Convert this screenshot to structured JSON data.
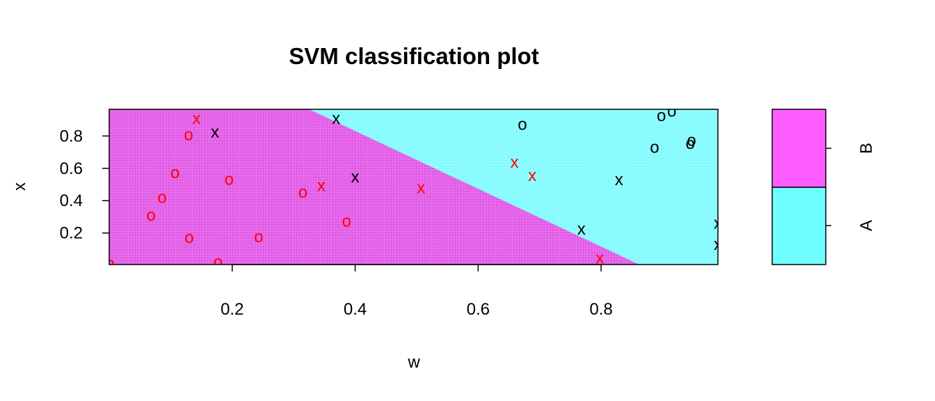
{
  "colors": {
    "region_B": "#e05ae6",
    "region_A": "#7ffbff",
    "legend_B": "#ff5cff",
    "legend_A": "#6ffffe",
    "point_red": "#ff0000",
    "point_black": "#000000"
  },
  "chart_data": {
    "type": "scatter",
    "title": "SVM classification plot",
    "xlabel": "w",
    "ylabel": "x",
    "xlim": [
      0.0,
      0.99
    ],
    "ylim": [
      0.005,
      0.965
    ],
    "x_ticks": [
      0.2,
      0.4,
      0.6,
      0.8
    ],
    "y_ticks": [
      0.2,
      0.4,
      0.6,
      0.8
    ],
    "x_tick_labels": [
      "0.2",
      "0.4",
      "0.6",
      "0.8"
    ],
    "y_tick_labels": [
      "0.2",
      "0.4",
      "0.6",
      "0.8"
    ],
    "decision_boundary": [
      [
        0.325,
        0.965
      ],
      [
        0.862,
        0.005
      ]
    ],
    "regions": [
      {
        "class": "B",
        "side": "left-lower",
        "color": "#e05ae6"
      },
      {
        "class": "A",
        "side": "right-upper",
        "color": "#7ffbff"
      }
    ],
    "legend": {
      "placement": "right",
      "entries": [
        {
          "label": "B",
          "color": "#ff5cff"
        },
        {
          "label": "A",
          "color": "#6ffffe"
        }
      ]
    },
    "points": [
      {
        "w": 0.142,
        "x": 0.908,
        "marker": "x",
        "color": "red"
      },
      {
        "w": 0.129,
        "x": 0.808,
        "marker": "o",
        "color": "red"
      },
      {
        "w": 0.107,
        "x": 0.573,
        "marker": "o",
        "color": "red"
      },
      {
        "w": 0.195,
        "x": 0.533,
        "marker": "o",
        "color": "red"
      },
      {
        "w": 0.086,
        "x": 0.42,
        "marker": "o",
        "color": "red"
      },
      {
        "w": 0.068,
        "x": 0.311,
        "marker": "o",
        "color": "red"
      },
      {
        "w": 0.13,
        "x": 0.173,
        "marker": "o",
        "color": "red"
      },
      {
        "w": 0.243,
        "x": 0.178,
        "marker": "o",
        "color": "red"
      },
      {
        "w": 0.177,
        "x": 0.022,
        "marker": "o",
        "color": "red"
      },
      {
        "w": 0.001,
        "x": 0.014,
        "marker": "o",
        "color": "red"
      },
      {
        "w": 0.315,
        "x": 0.452,
        "marker": "o",
        "color": "red"
      },
      {
        "w": 0.345,
        "x": 0.493,
        "marker": "x",
        "color": "red"
      },
      {
        "w": 0.386,
        "x": 0.273,
        "marker": "o",
        "color": "red"
      },
      {
        "w": 0.507,
        "x": 0.48,
        "marker": "x",
        "color": "red"
      },
      {
        "w": 0.659,
        "x": 0.638,
        "marker": "x",
        "color": "red"
      },
      {
        "w": 0.688,
        "x": 0.557,
        "marker": "x",
        "color": "red"
      },
      {
        "w": 0.798,
        "x": 0.046,
        "marker": "x",
        "color": "red"
      },
      {
        "w": 0.172,
        "x": 0.825,
        "marker": "x",
        "color": "black"
      },
      {
        "w": 0.369,
        "x": 0.91,
        "marker": "x",
        "color": "black"
      },
      {
        "w": 0.4,
        "x": 0.548,
        "marker": "x",
        "color": "black"
      },
      {
        "w": 0.672,
        "x": 0.873,
        "marker": "o",
        "color": "black"
      },
      {
        "w": 0.898,
        "x": 0.927,
        "marker": "o",
        "color": "black"
      },
      {
        "w": 0.915,
        "x": 0.954,
        "marker": "o",
        "color": "black"
      },
      {
        "w": 0.887,
        "x": 0.73,
        "marker": "o",
        "color": "black"
      },
      {
        "w": 0.945,
        "x": 0.753,
        "marker": "o",
        "color": "black"
      },
      {
        "w": 0.947,
        "x": 0.774,
        "marker": "o",
        "color": "black"
      },
      {
        "w": 0.829,
        "x": 0.531,
        "marker": "x",
        "color": "black"
      },
      {
        "w": 0.768,
        "x": 0.224,
        "marker": "x",
        "color": "black"
      },
      {
        "w": 0.99,
        "x": 0.262,
        "marker": "x",
        "color": "black"
      },
      {
        "w": 0.99,
        "x": 0.13,
        "marker": "x",
        "color": "black"
      }
    ]
  }
}
